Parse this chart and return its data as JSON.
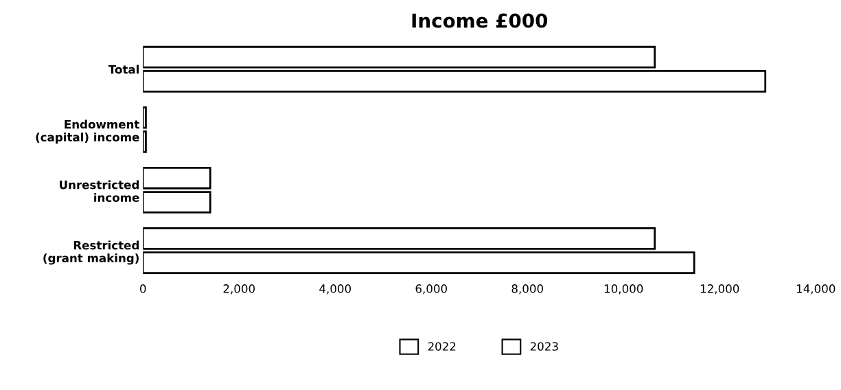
{
  "chart_data": {
    "type": "bar",
    "orientation": "horizontal",
    "title": "Income £000",
    "categories": [
      "Total",
      "Endowment\n(capital) income",
      "Unrestricted\nincome",
      "Restricted\n(grant making)"
    ],
    "series": [
      {
        "name": "2022",
        "color": "#ffffff",
        "values": [
          10650,
          60,
          1400,
          10650
        ]
      },
      {
        "name": "2023",
        "color": "#ffffff",
        "values": [
          12950,
          60,
          1400,
          11470
        ]
      }
    ],
    "xlim": [
      0,
      14000
    ],
    "xticks": [
      {
        "value": 0,
        "label": "0"
      },
      {
        "value": 2000,
        "label": "2,000"
      },
      {
        "value": 4000,
        "label": "4,000"
      },
      {
        "value": 6000,
        "label": "6,000"
      },
      {
        "value": 8000,
        "label": "8,000"
      },
      {
        "value": 10000,
        "label": "10,000"
      },
      {
        "value": 12000,
        "label": "12,000"
      },
      {
        "value": 14000,
        "label": "14,000"
      }
    ],
    "grid": false,
    "legend": "bottom"
  }
}
